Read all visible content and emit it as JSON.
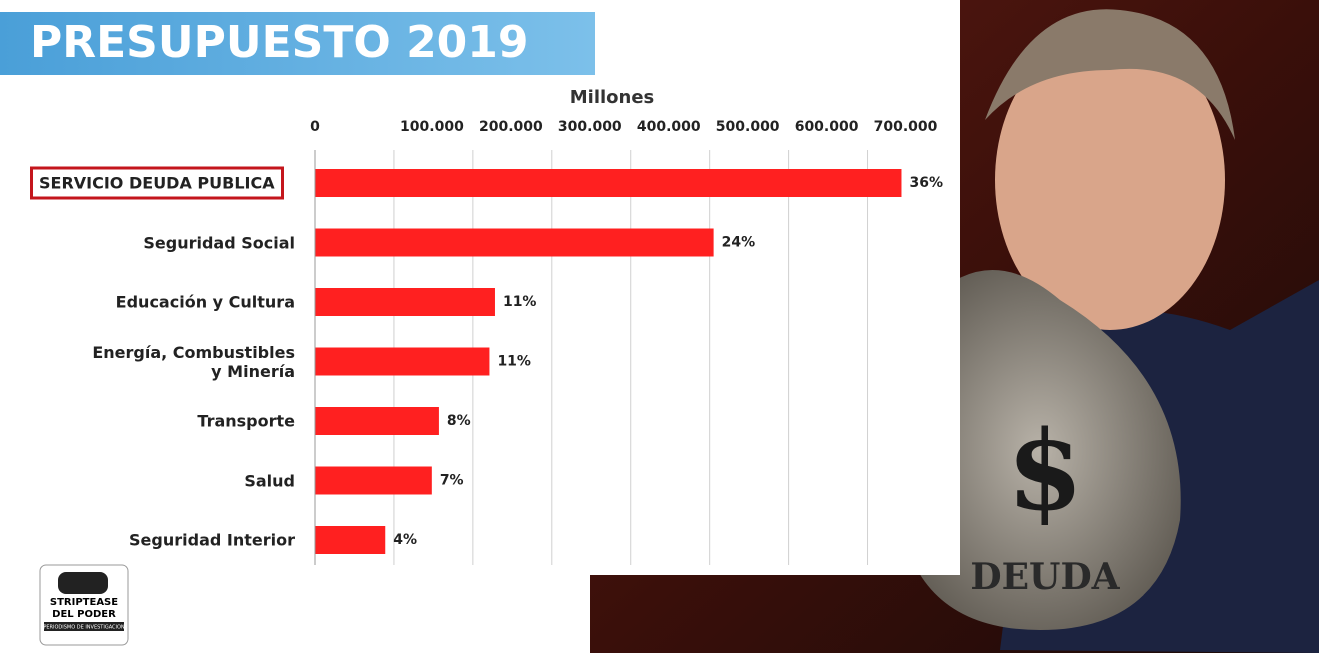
{
  "header": {
    "title": "PRESUPUESTO 2019"
  },
  "chart_data": {
    "type": "bar",
    "orientation": "horizontal",
    "x_label": "Millones",
    "categories": [
      "SERVICIO DEUDA PUBLICA",
      "Seguridad Social",
      "Educación y Cultura",
      "Energía, Combustibles\ny Minería",
      "Transporte",
      "Salud",
      "Seguridad Interior"
    ],
    "values": [
      743000,
      505000,
      228000,
      221000,
      157000,
      148000,
      89000
    ],
    "bar_labels": [
      "36%",
      "24%",
      "11%",
      "11%",
      "8%",
      "7%",
      "4%"
    ],
    "color": "#ff2020",
    "highlight_color": "#c4161c",
    "xlim": [
      0,
      750000
    ],
    "xticks": [
      0,
      {
        "value": 100000,
        "label": "100.000"
      },
      {
        "value": 200000,
        "label": "200.000"
      },
      {
        "value": 300000,
        "label": "300.000"
      },
      {
        "value": 400000,
        "label": "400.000"
      },
      {
        "value": 500000,
        "label": "500.000"
      },
      {
        "value": 600000,
        "label": "600.000"
      },
      {
        "value": 700000,
        "label": "700.000"
      }
    ],
    "grid": true
  },
  "logo": {
    "line1": "STRIPTEASE",
    "line2": "DEL PODER",
    "line3": "PERIODISMO DE INVESTIGACION"
  },
  "image_texts": {
    "symbol": "$",
    "bag": "DEUDA"
  }
}
